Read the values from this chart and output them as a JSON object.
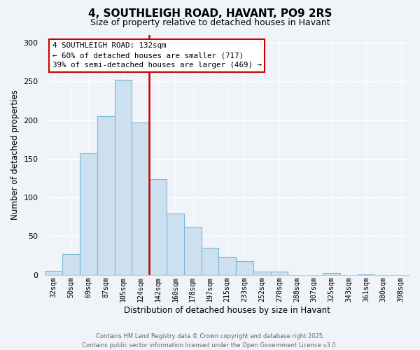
{
  "title": "4, SOUTHLEIGH ROAD, HAVANT, PO9 2RS",
  "subtitle": "Size of property relative to detached houses in Havant",
  "xlabel": "Distribution of detached houses by size in Havant",
  "ylabel": "Number of detached properties",
  "bar_labels": [
    "32sqm",
    "50sqm",
    "69sqm",
    "87sqm",
    "105sqm",
    "124sqm",
    "142sqm",
    "160sqm",
    "178sqm",
    "197sqm",
    "215sqm",
    "233sqm",
    "252sqm",
    "270sqm",
    "288sqm",
    "307sqm",
    "325sqm",
    "343sqm",
    "361sqm",
    "380sqm",
    "398sqm"
  ],
  "bar_values": [
    5,
    27,
    157,
    205,
    252,
    197,
    124,
    79,
    62,
    35,
    23,
    18,
    4,
    4,
    0,
    0,
    2,
    0,
    1,
    0,
    0
  ],
  "bar_color": "#cde0f0",
  "bar_edge_color": "#7ab8d9",
  "vline_color": "#cc0000",
  "annotation_title": "4 SOUTHLEIGH ROAD: 132sqm",
  "annotation_line1": "← 60% of detached houses are smaller (717)",
  "annotation_line2": "39% of semi-detached houses are larger (469) →",
  "annotation_box_color": "#ffffff",
  "annotation_box_edge": "#cc0000",
  "ylim": [
    0,
    310
  ],
  "yticks": [
    0,
    50,
    100,
    150,
    200,
    250,
    300
  ],
  "background_color": "#f0f4f8",
  "grid_color": "#ffffff",
  "footer1": "Contains HM Land Registry data © Crown copyright and database right 2025.",
  "footer2": "Contains public sector information licensed under the Open Government Licence v3.0."
}
